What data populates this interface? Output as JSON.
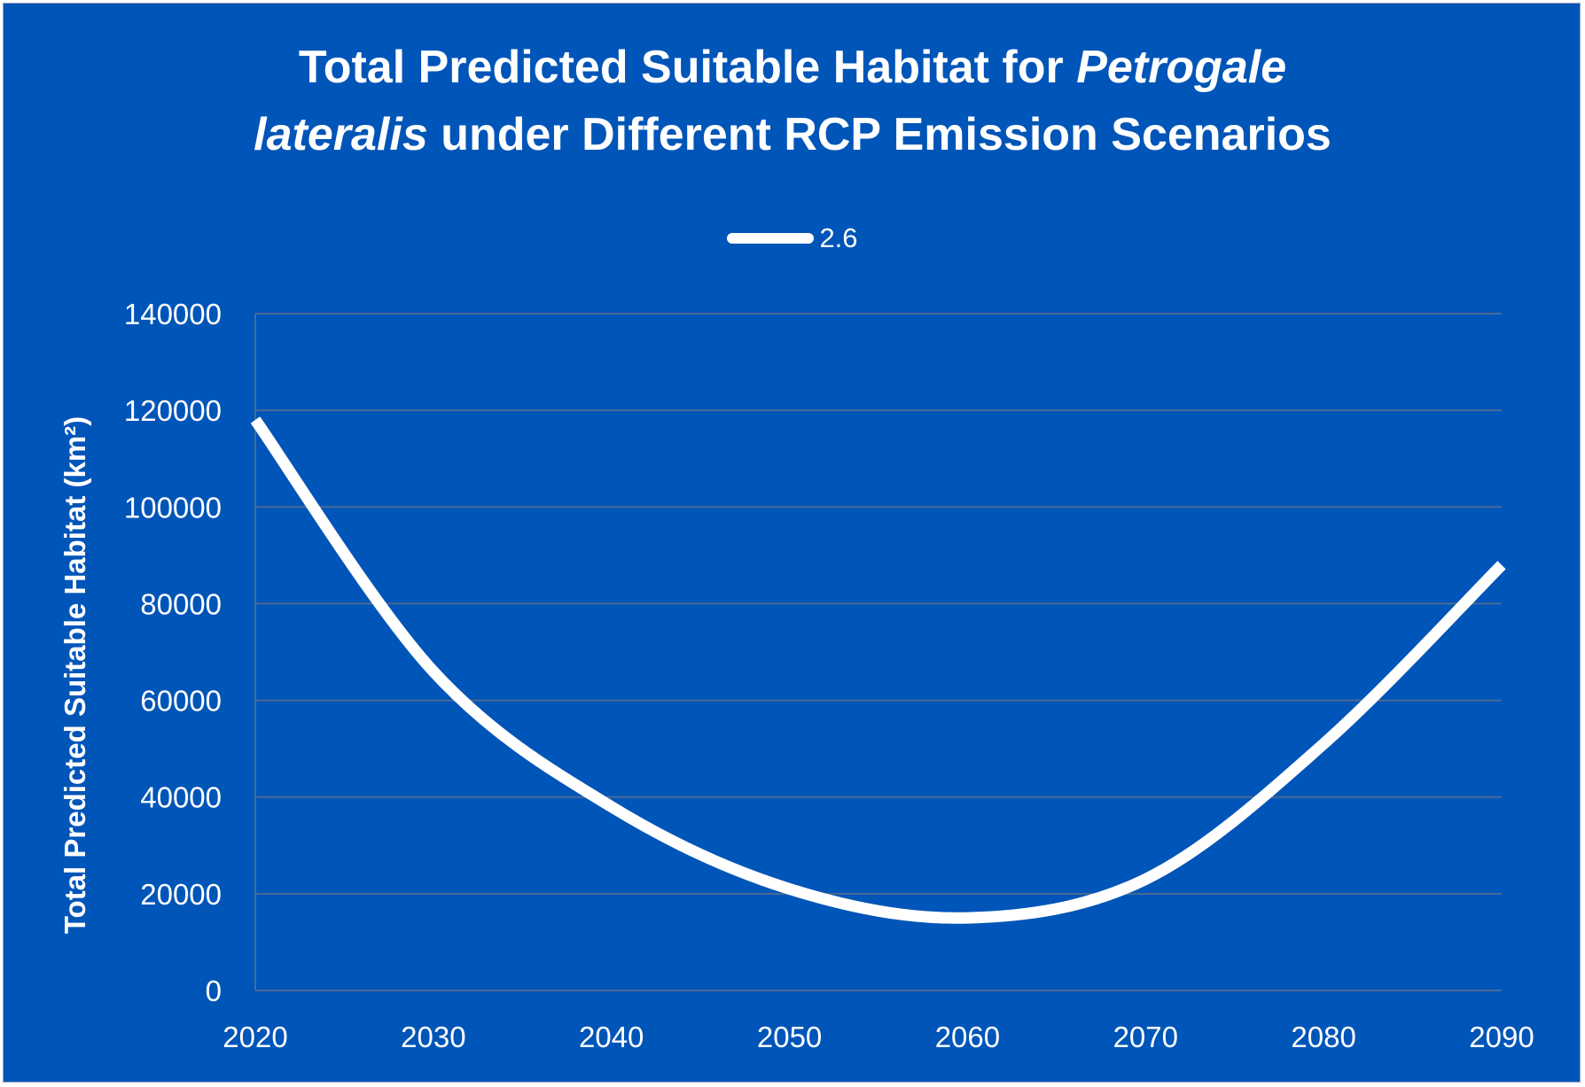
{
  "chart_data": {
    "type": "line",
    "title_parts": [
      {
        "text": "Total Predicted Suitable Habitat for ",
        "italic": false
      },
      {
        "text": "Petrogale",
        "italic": true
      },
      {
        "text": "\n",
        "italic": false
      },
      {
        "text": "lateralis",
        "italic": true
      },
      {
        "text": " under Different RCP Emission Scenarios",
        "italic": false
      }
    ],
    "xlabel": "",
    "ylabel": "Total Predicted Suitable Habitat (km²)",
    "x": [
      2020,
      2030,
      2040,
      2050,
      2060,
      2070,
      2080,
      2090
    ],
    "x_ticks": [
      "2020",
      "2030",
      "2040",
      "2050",
      "2060",
      "2070",
      "2080",
      "2090"
    ],
    "y_ticks": [
      "0",
      "20000",
      "40000",
      "60000",
      "80000",
      "100000",
      "120000",
      "140000"
    ],
    "ylim": [
      0,
      140000
    ],
    "xlim": [
      2020,
      2090
    ],
    "grid": true,
    "legend_position": "top-center",
    "series": [
      {
        "name": "2.6",
        "values": [
          118000,
          66000,
          38000,
          21000,
          15000,
          23000,
          51000,
          88000
        ],
        "color": "#ffffff"
      }
    ],
    "colors": {
      "background": "#0055b8",
      "gridline": "#4a6a95",
      "text": "#ffffff"
    }
  }
}
